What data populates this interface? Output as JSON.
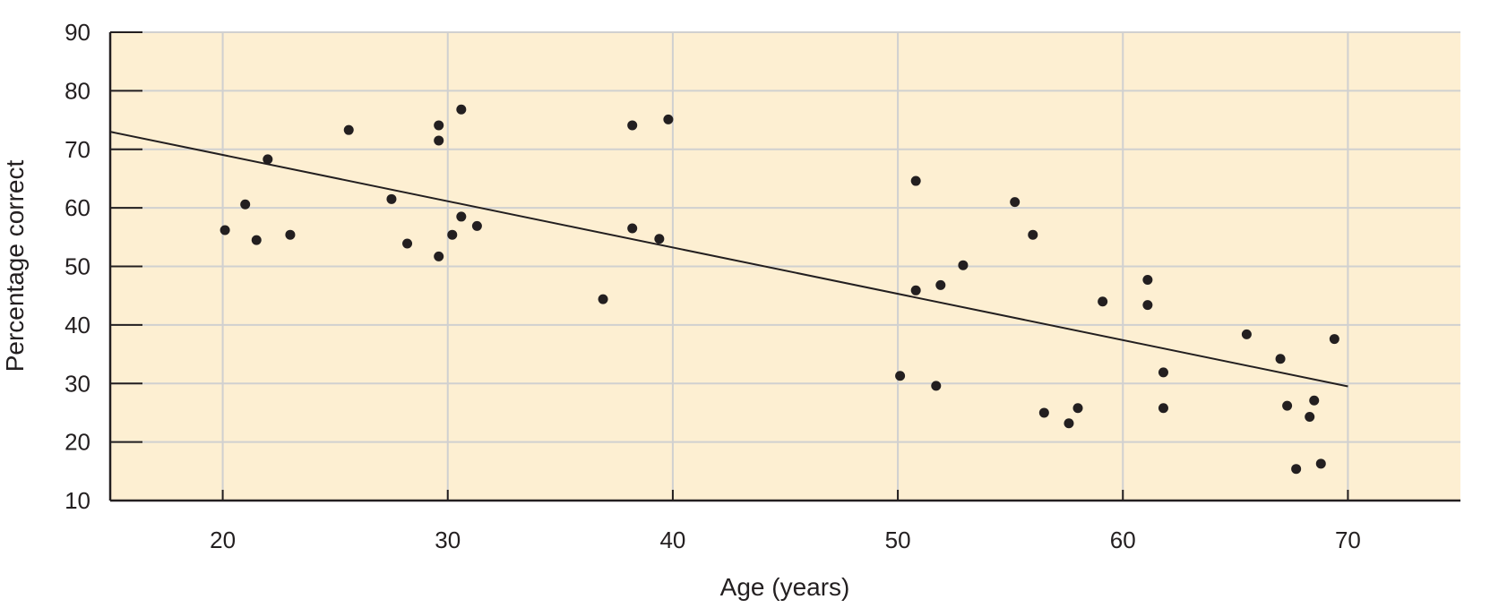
{
  "chart_data": {
    "type": "scatter",
    "title": "",
    "xlabel": "Age (years)",
    "ylabel": "Percentage correct",
    "xlim": [
      15,
      75
    ],
    "ylim": [
      10,
      90
    ],
    "xticks": [
      20,
      30,
      40,
      50,
      60,
      70
    ],
    "yticks": [
      10,
      20,
      30,
      40,
      50,
      60,
      70,
      80,
      90
    ],
    "grid": true,
    "legend": "none",
    "colors": {
      "background": "#fdefd2",
      "grid": "#d0d0d0",
      "point": "#231f20",
      "line": "#231f20"
    },
    "series": [
      {
        "points": [
          [
            20.1,
            56.2
          ],
          [
            21.0,
            60.6
          ],
          [
            21.5,
            54.5
          ],
          [
            22.0,
            68.3
          ],
          [
            23.0,
            55.4
          ],
          [
            25.6,
            73.3
          ],
          [
            27.5,
            61.5
          ],
          [
            28.2,
            53.9
          ],
          [
            29.6,
            51.7
          ],
          [
            29.6,
            74.1
          ],
          [
            29.6,
            71.5
          ],
          [
            30.2,
            55.4
          ],
          [
            30.6,
            58.5
          ],
          [
            30.6,
            76.8
          ],
          [
            31.3,
            56.9
          ],
          [
            36.9,
            44.4
          ],
          [
            38.2,
            56.5
          ],
          [
            38.2,
            74.1
          ],
          [
            39.4,
            54.7
          ],
          [
            39.8,
            75.1
          ],
          [
            50.1,
            31.3
          ],
          [
            50.8,
            64.6
          ],
          [
            50.8,
            45.9
          ],
          [
            51.7,
            29.6
          ],
          [
            51.9,
            46.8
          ],
          [
            52.9,
            50.2
          ],
          [
            55.2,
            61.0
          ],
          [
            56.0,
            55.4
          ],
          [
            56.5,
            25.0
          ],
          [
            57.6,
            23.2
          ],
          [
            58.0,
            25.8
          ],
          [
            59.1,
            44.0
          ],
          [
            61.1,
            47.7
          ],
          [
            61.1,
            43.4
          ],
          [
            61.8,
            31.9
          ],
          [
            61.8,
            25.8
          ],
          [
            65.5,
            38.4
          ],
          [
            67.0,
            34.2
          ],
          [
            67.3,
            26.2
          ],
          [
            67.7,
            15.4
          ],
          [
            68.3,
            24.3
          ],
          [
            68.5,
            27.1
          ],
          [
            68.8,
            16.3
          ],
          [
            69.4,
            37.6
          ]
        ]
      }
    ],
    "trendline": {
      "x": [
        15,
        70
      ],
      "y": [
        73.0,
        29.5
      ]
    }
  }
}
